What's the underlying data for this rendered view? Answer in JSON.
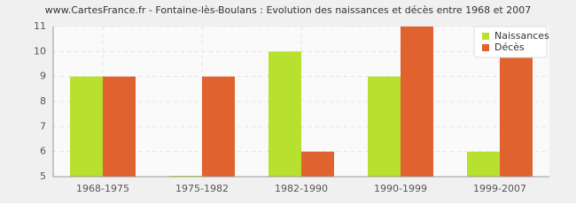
{
  "chart_data": {
    "type": "bar",
    "title": "www.CartesFrance.fr - Fontaine-lès-Boulans : Evolution des naissances et décès entre 1968 et 2007",
    "categories": [
      "1968-1975",
      "1975-1982",
      "1982-1990",
      "1990-1999",
      "1999-2007"
    ],
    "series": [
      {
        "name": "Naissances",
        "color": "#b8e02e",
        "values": [
          9,
          5,
          10,
          9,
          6
        ]
      },
      {
        "name": "Décès",
        "color": "#e0622e",
        "values": [
          9,
          9,
          6,
          11,
          11
        ]
      }
    ],
    "ylim": [
      5,
      11
    ],
    "yticks": [
      5,
      6,
      7,
      8,
      9,
      10,
      11
    ],
    "grid": true,
    "legend": "top-right"
  }
}
